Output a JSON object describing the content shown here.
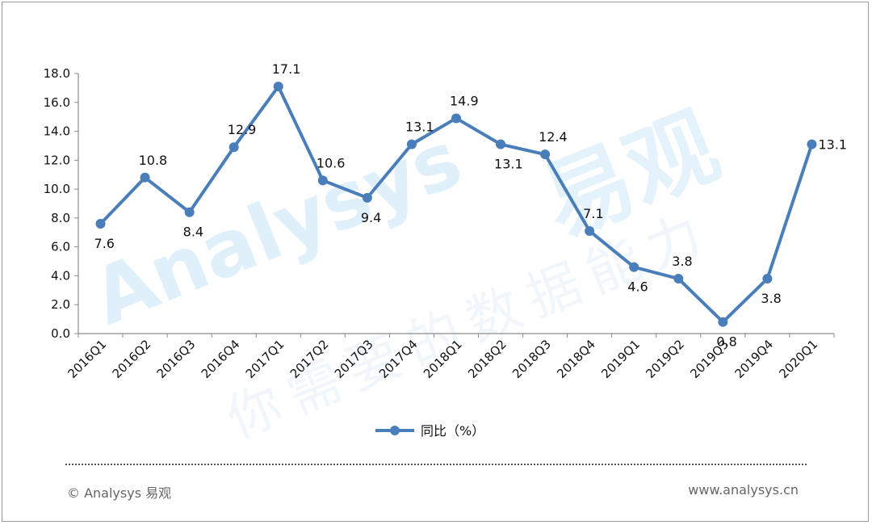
{
  "chart_data": {
    "type": "line",
    "title": "",
    "xlabel": "",
    "ylabel": "",
    "categories": [
      "2016Q1",
      "2016Q2",
      "2016Q3",
      "2016Q4",
      "2017Q1",
      "2017Q2",
      "2017Q3",
      "2017Q4",
      "2018Q1",
      "2018Q2",
      "2018Q3",
      "2018Q4",
      "2019Q1",
      "2019Q2",
      "2019Q3",
      "2019Q4",
      "2020Q1"
    ],
    "series": [
      {
        "name": "同比（%）",
        "values": [
          7.6,
          10.8,
          8.4,
          12.9,
          17.1,
          10.6,
          9.4,
          13.1,
          14.9,
          13.1,
          12.4,
          7.1,
          4.6,
          3.8,
          0.8,
          3.8,
          13.1
        ],
        "labels": [
          "7.6",
          "10.8",
          "8.4",
          "12.9",
          "17.1",
          "10.6",
          "9.4",
          "13.1",
          "14.9",
          "13.1",
          "12.4",
          "7.1",
          "4.6",
          "3.8",
          "0.8",
          "3.8",
          "13.1"
        ],
        "color": "#4a7ebb"
      }
    ],
    "ylim": [
      0,
      18
    ],
    "yticks": [
      "0.0",
      "2.0",
      "4.0",
      "6.0",
      "8.0",
      "10.0",
      "12.0",
      "14.0",
      "16.0",
      "18.0"
    ],
    "grid": false,
    "legend": "bottom"
  },
  "watermark": {
    "brand_text": "Analysys",
    "brand_cn": "易观",
    "slogan": "你需要的数据能力"
  },
  "footer": {
    "copyright": "© Analysys 易观",
    "url": "www.analysys.cn"
  }
}
